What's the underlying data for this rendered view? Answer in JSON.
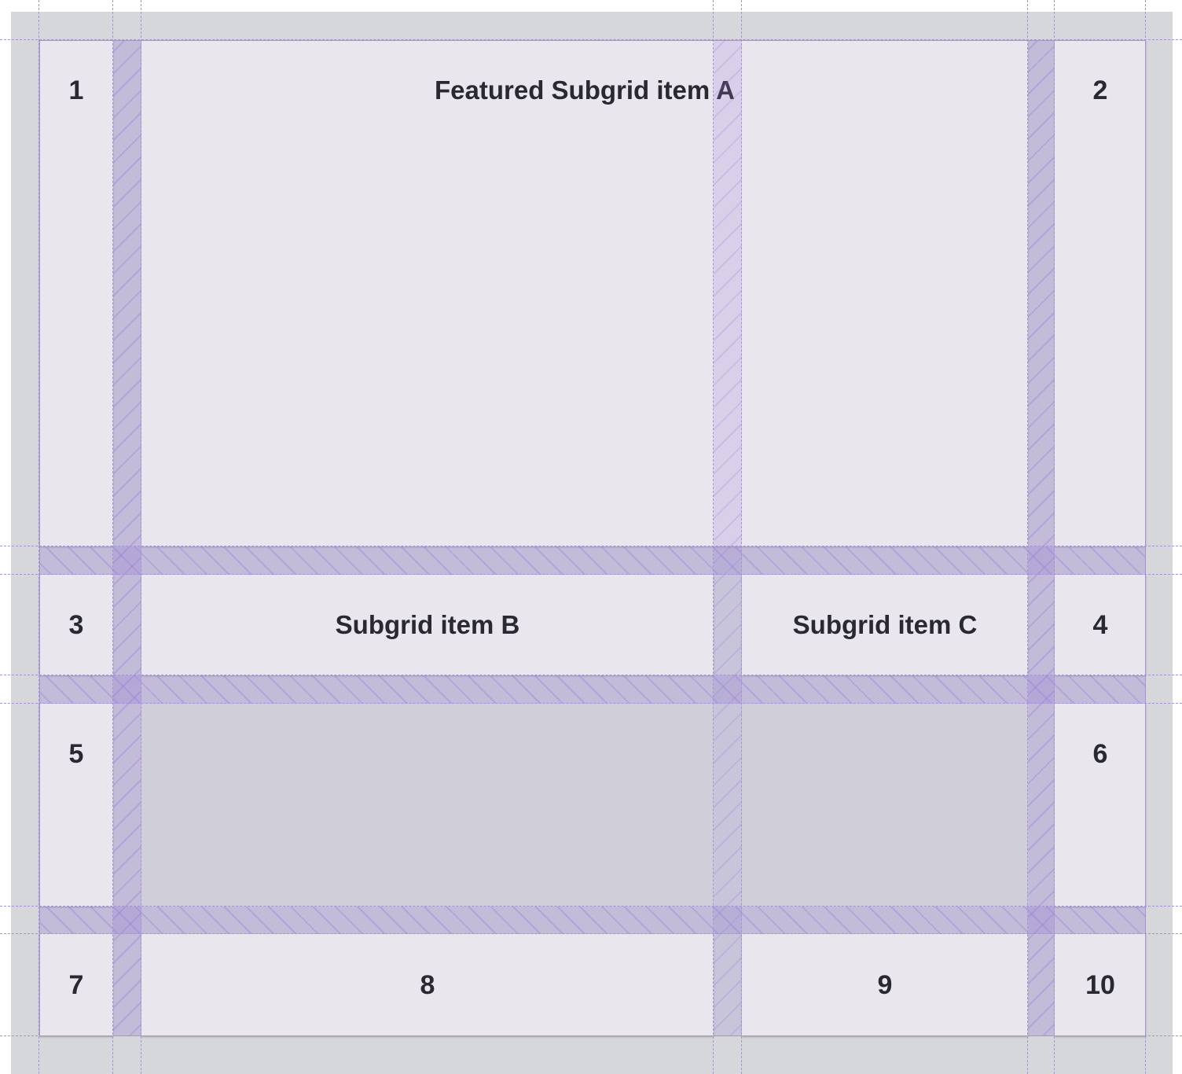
{
  "grid": {
    "items": [
      "1",
      "2",
      "3",
      "4",
      "5",
      "6",
      "7",
      "8",
      "9",
      "10"
    ],
    "subgrid_items": {
      "a": "Featured Subgrid item A",
      "b": "Subgrid item B",
      "c": "Subgrid item C"
    }
  },
  "colors": {
    "item": "#e9e6ee",
    "background": "#d6d7db",
    "overlay": "#a892d6"
  }
}
